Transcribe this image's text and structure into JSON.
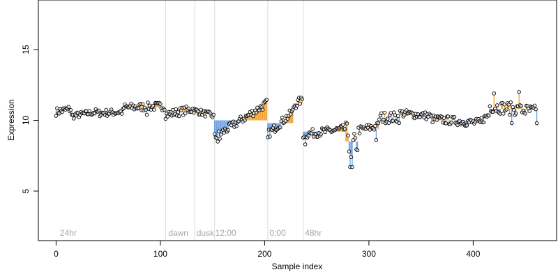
{
  "chart_data": {
    "type": "scatter",
    "title": "",
    "xlabel": "Sample index",
    "ylabel": "Expression",
    "xlim": [
      -17,
      480
    ],
    "ylim": [
      1.5,
      18.5
    ],
    "x_ticks": [
      0,
      100,
      200,
      300,
      400
    ],
    "y_ticks": [
      5,
      10,
      15
    ],
    "grid": false,
    "vlines": [
      105,
      133,
      152,
      203,
      237
    ],
    "annotations": [
      {
        "text": "24hr",
        "x": 3
      },
      {
        "text": "dawn",
        "x": 107
      },
      {
        "text": "dusk",
        "x": 134
      },
      {
        "text": "12:00",
        "x": 152
      },
      {
        "text": "0:00",
        "x": 204
      },
      {
        "text": "48hr",
        "x": 238
      }
    ],
    "colors": {
      "above": "#f0a030",
      "below": "#6f9fe0",
      "points": "#000000",
      "vline": "#dcdcdc"
    },
    "segments": [
      {
        "x0": 0,
        "x1": 15,
        "mean": 10.7,
        "start": 10.6,
        "end": 10.8,
        "amp": 0.28
      },
      {
        "x0": 15,
        "x1": 40,
        "mean": 10.45,
        "start": 10.3,
        "end": 10.6,
        "amp": 0.22
      },
      {
        "x0": 40,
        "x1": 65,
        "mean": 10.55,
        "start": 10.5,
        "end": 10.6,
        "amp": 0.25
      },
      {
        "x0": 65,
        "x1": 105,
        "mean": 10.9,
        "start": 10.9,
        "end": 11.0,
        "amp": 0.3
      },
      {
        "x0": 105,
        "x1": 133,
        "mean": 10.6,
        "start": 10.4,
        "end": 10.8,
        "amp": 0.3
      },
      {
        "x0": 133,
        "x1": 152,
        "mean": 10.5,
        "start": 10.7,
        "end": 10.3,
        "amp": 0.22
      },
      {
        "x0": 152,
        "x1": 203,
        "mean": 10.0,
        "start": 8.8,
        "end": 11.2,
        "amp": 0.3
      },
      {
        "x0": 203,
        "x1": 228,
        "mean": 9.8,
        "start": 9.0,
        "end": 10.6,
        "amp": 0.3
      },
      {
        "x0": 228,
        "x1": 237,
        "mean": 11.2,
        "start": 11.0,
        "end": 11.5,
        "amp": 0.3
      },
      {
        "x0": 237,
        "x1": 278,
        "mean": 9.2,
        "start": 9.0,
        "end": 9.4,
        "amp": 0.3
      },
      {
        "x0": 278,
        "x1": 290,
        "mean": 8.5,
        "start": 9.3,
        "end": 8.2,
        "amp": 0.6
      },
      {
        "x0": 290,
        "x1": 310,
        "mean": 9.4,
        "start": 9.3,
        "end": 9.6,
        "amp": 0.3
      },
      {
        "x0": 310,
        "x1": 330,
        "mean": 10.2,
        "start": 10.2,
        "end": 10.2,
        "amp": 0.4
      },
      {
        "x0": 330,
        "x1": 360,
        "mean": 10.4,
        "start": 10.5,
        "end": 10.3,
        "amp": 0.28
      },
      {
        "x0": 360,
        "x1": 408,
        "mean": 10.0,
        "start": 10.1,
        "end": 9.8,
        "amp": 0.3
      },
      {
        "x0": 408,
        "x1": 416,
        "mean": 10.2,
        "start": 10.0,
        "end": 10.4,
        "amp": 0.3
      },
      {
        "x0": 416,
        "x1": 462,
        "mean": 10.8,
        "start": 11.0,
        "end": 10.6,
        "amp": 0.45
      }
    ],
    "outliers": [
      {
        "x": 87,
        "y": 10.4
      },
      {
        "x": 235,
        "y": 11.6
      },
      {
        "x": 239,
        "y": 8.3
      },
      {
        "x": 281,
        "y": 7.8
      },
      {
        "x": 282,
        "y": 6.7
      },
      {
        "x": 283,
        "y": 7.4
      },
      {
        "x": 284,
        "y": 6.7
      },
      {
        "x": 285,
        "y": 8.6
      },
      {
        "x": 307,
        "y": 8.6
      },
      {
        "x": 155,
        "y": 8.5
      },
      {
        "x": 157,
        "y": 8.7
      },
      {
        "x": 203,
        "y": 8.8
      },
      {
        "x": 420,
        "y": 11.9
      },
      {
        "x": 437,
        "y": 9.8
      },
      {
        "x": 444,
        "y": 12.0
      },
      {
        "x": 461,
        "y": 9.8
      }
    ]
  }
}
